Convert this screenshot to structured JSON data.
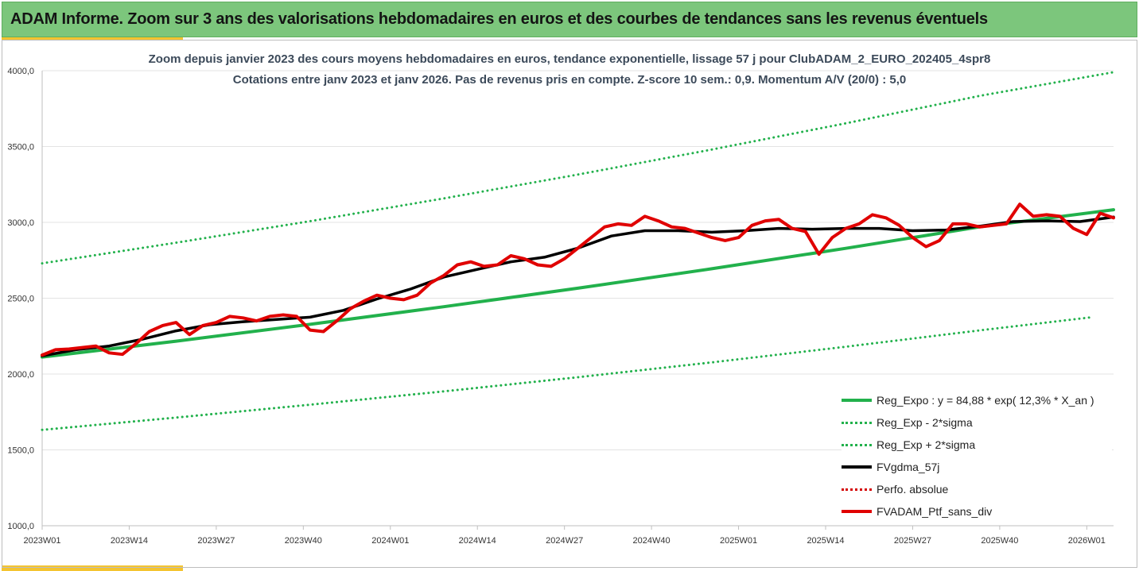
{
  "banner": {
    "title": "ADAM Informe. Zoom sur 3 ans des valorisations hebdomadaires en euros et des courbes de tendances sans les revenus éventuels"
  },
  "chart_data": {
    "type": "line",
    "title_line1": "Zoom depuis janvier 2023 des cours moyens hebdomadaires  en euros, tendance exponentielle, lissage 57 j pour ClubADAM_2_EURO_202405_4spr8",
    "title_line2": "Cotations entre janv 2023 et janv 2026. Pas de revenus pris en compte. Z-score 10 sem.: 0,9. Momentum A/V (20/0) : 5,0",
    "ylim": [
      1000,
      4000
    ],
    "y_ticks": [
      "1000,0",
      "1500,0",
      "2000,0",
      "2500,0",
      "3000,0",
      "3500,0",
      "4000,0"
    ],
    "x_week_range": [
      0,
      160
    ],
    "x_ticks": [
      "2023W01",
      "2023W14",
      "2023W27",
      "2023W40",
      "2024W01",
      "2024W14",
      "2024W27",
      "2024W40",
      "2025W01",
      "2025W14",
      "2025W27",
      "2025W40",
      "2026W01"
    ],
    "legend_position": "bottom-right",
    "series": [
      {
        "name": "Reg_Expo : y = 84,88 * exp( 12,3% *  X_an )",
        "color": "#22b14c",
        "style": "solid",
        "x": [
          0,
          20,
          40,
          60,
          80,
          100,
          120,
          140,
          160
        ],
        "values": [
          2112,
          2217,
          2328,
          2444,
          2566,
          2694,
          2829,
          2970,
          3083
        ]
      },
      {
        "name": "Reg_Exp - 2*sigma",
        "color": "#22b14c",
        "style": "dotted",
        "x": [
          0,
          20,
          40,
          60,
          80,
          100,
          120,
          140,
          157
        ],
        "values": [
          1632,
          1713,
          1798,
          1886,
          1979,
          2077,
          2180,
          2288,
          2376
        ]
      },
      {
        "name": "Reg_Exp + 2*sigma",
        "color": "#22b14c",
        "style": "dotted",
        "x": [
          0,
          20,
          40,
          60,
          80,
          100,
          120,
          140,
          160
        ],
        "values": [
          2730,
          2866,
          3008,
          3158,
          3315,
          3480,
          3653,
          3834,
          3990
        ]
      },
      {
        "name": "FVgdma_57j",
        "color": "#000000",
        "style": "solid",
        "x": [
          0,
          5,
          10,
          15,
          20,
          25,
          30,
          35,
          40,
          45,
          50,
          55,
          60,
          65,
          70,
          75,
          80,
          85,
          90,
          95,
          100,
          105,
          110,
          115,
          120,
          125,
          130,
          135,
          140,
          145,
          150,
          155,
          160
        ],
        "values": [
          2120,
          2160,
          2185,
          2230,
          2285,
          2325,
          2345,
          2360,
          2375,
          2420,
          2495,
          2560,
          2640,
          2690,
          2740,
          2770,
          2830,
          2910,
          2945,
          2945,
          2935,
          2945,
          2960,
          2955,
          2960,
          2960,
          2945,
          2950,
          2975,
          3005,
          3010,
          3005,
          3035
        ]
      },
      {
        "name": "Perfo. absolue",
        "color": "#d40000",
        "style": "dotted",
        "x": [],
        "values": []
      },
      {
        "name": "FVADAM_Ptf_sans_div",
        "color": "#e00000",
        "style": "solid",
        "x": [
          0,
          2,
          4,
          6,
          8,
          10,
          12,
          14,
          16,
          18,
          20,
          22,
          24,
          26,
          28,
          30,
          32,
          34,
          36,
          38,
          40,
          42,
          44,
          46,
          48,
          50,
          52,
          54,
          56,
          58,
          60,
          62,
          64,
          66,
          68,
          70,
          72,
          74,
          76,
          78,
          80,
          82,
          84,
          86,
          88,
          90,
          92,
          94,
          96,
          98,
          100,
          102,
          104,
          106,
          108,
          110,
          112,
          114,
          116,
          118,
          120,
          122,
          124,
          126,
          128,
          130,
          132,
          134,
          136,
          138,
          140,
          142,
          144,
          146,
          148,
          150,
          152,
          154,
          156,
          158,
          160
        ],
        "values": [
          2125,
          2160,
          2165,
          2175,
          2185,
          2140,
          2130,
          2200,
          2280,
          2320,
          2340,
          2260,
          2320,
          2340,
          2380,
          2370,
          2350,
          2380,
          2390,
          2380,
          2290,
          2280,
          2350,
          2430,
          2480,
          2520,
          2500,
          2490,
          2520,
          2600,
          2650,
          2720,
          2740,
          2710,
          2720,
          2780,
          2760,
          2720,
          2710,
          2760,
          2830,
          2900,
          2970,
          2990,
          2980,
          3040,
          3010,
          2970,
          2960,
          2930,
          2900,
          2880,
          2900,
          2980,
          3010,
          3020,
          2960,
          2940,
          2790,
          2900,
          2960,
          2990,
          3050,
          3030,
          2980,
          2900,
          2840,
          2880,
          2990,
          2990,
          2970,
          2980,
          2990,
          3120,
          3040,
          3050,
          3040,
          2960,
          2920,
          3060,
          3030
        ]
      }
    ]
  }
}
